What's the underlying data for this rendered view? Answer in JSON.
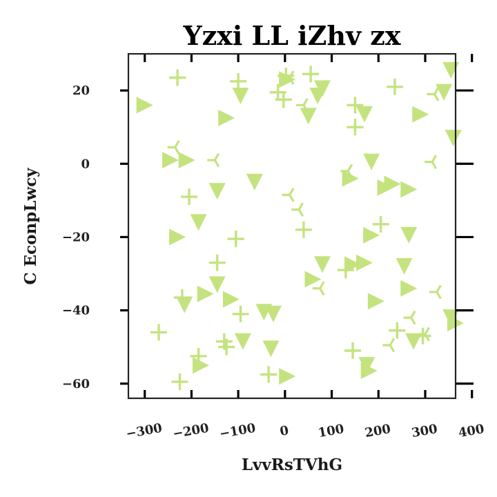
{
  "chart_data": {
    "type": "scatter",
    "title": "Yzxi LL iZhv zx",
    "xlabel": "LvvRsTVhG",
    "ylabel": "C EconpLwcy",
    "xlim": [
      -335,
      365
    ],
    "ylim": [
      -64,
      30
    ],
    "xticks": [
      -300,
      -200,
      -100,
      0,
      100,
      200,
      300,
      400
    ],
    "xtick_labels": [
      "−300",
      "−200",
      "−100",
      "0",
      "100",
      "200",
      "300",
      "400"
    ],
    "yticks": [
      20,
      0,
      -20,
      -40,
      -60
    ],
    "ytick_labels": [
      "20",
      "0",
      "−20",
      "−40",
      "−60"
    ],
    "grid": false,
    "legend": "none",
    "marker_color": "#c4e37f",
    "series": [
      {
        "marker": "plus",
        "points": [
          {
            "x": -230,
            "y": 23.5
          },
          {
            "x": -100,
            "y": 22.5
          },
          {
            "x": -15,
            "y": 19.5
          },
          {
            "x": -3,
            "y": 17.5
          },
          {
            "x": 2,
            "y": 24
          },
          {
            "x": 55,
            "y": 24.5
          },
          {
            "x": 150,
            "y": 16
          },
          {
            "x": 150,
            "y": 10
          },
          {
            "x": 235,
            "y": 21
          },
          {
            "x": -205,
            "y": -9
          },
          {
            "x": 40,
            "y": -18
          },
          {
            "x": -105,
            "y": -20.5
          },
          {
            "x": 205,
            "y": -16.5
          },
          {
            "x": -145,
            "y": -27
          },
          {
            "x": 130,
            "y": -29
          },
          {
            "x": -220,
            "y": -36.5
          },
          {
            "x": -95,
            "y": -41
          },
          {
            "x": -270,
            "y": -46
          },
          {
            "x": -130,
            "y": -48.5
          },
          {
            "x": -125,
            "y": -50
          },
          {
            "x": -185,
            "y": -52.5
          },
          {
            "x": 145,
            "y": -51
          },
          {
            "x": 240,
            "y": -45.5
          },
          {
            "x": 295,
            "y": -47
          },
          {
            "x": -225,
            "y": -59.5
          },
          {
            "x": -35,
            "y": -57.5
          }
        ]
      },
      {
        "marker": "tri_down",
        "points": [
          {
            "x": -95,
            "y": 18.5
          },
          {
            "x": 80,
            "y": 20.5
          },
          {
            "x": 70,
            "y": 18.5
          },
          {
            "x": 50,
            "y": 13
          },
          {
            "x": 170,
            "y": 13.5
          },
          {
            "x": 355,
            "y": 25.5
          },
          {
            "x": 340,
            "y": 19.5
          },
          {
            "x": 360,
            "y": 7
          },
          {
            "x": 185,
            "y": 0.5
          },
          {
            "x": -65,
            "y": -5
          },
          {
            "x": -145,
            "y": -7.5
          },
          {
            "x": -185,
            "y": -16
          },
          {
            "x": 265,
            "y": -19.5
          },
          {
            "x": 80,
            "y": -27.5
          },
          {
            "x": 255,
            "y": -28
          },
          {
            "x": -145,
            "y": -33
          },
          {
            "x": -215,
            "y": -38.5
          },
          {
            "x": -45,
            "y": -40.5
          },
          {
            "x": -25,
            "y": -41
          },
          {
            "x": -90,
            "y": -48.5
          },
          {
            "x": -30,
            "y": -50.5
          },
          {
            "x": 175,
            "y": -55
          },
          {
            "x": 275,
            "y": -48.5
          },
          {
            "x": 355,
            "y": -42
          }
        ]
      },
      {
        "marker": "tri_right",
        "points": [
          {
            "x": -300,
            "y": 16
          },
          {
            "x": 5,
            "y": 23
          },
          {
            "x": -125,
            "y": 12.5
          },
          {
            "x": 290,
            "y": 13.5
          },
          {
            "x": -245,
            "y": 1
          },
          {
            "x": -210,
            "y": 1
          },
          {
            "x": 140,
            "y": -4
          },
          {
            "x": 230,
            "y": -5.5
          },
          {
            "x": 215,
            "y": -6.5
          },
          {
            "x": 265,
            "y": -7
          },
          {
            "x": -230,
            "y": -20
          },
          {
            "x": 185,
            "y": -19.5
          },
          {
            "x": 145,
            "y": -27.5
          },
          {
            "x": 170,
            "y": -27
          },
          {
            "x": 60,
            "y": -31.5
          },
          {
            "x": -170,
            "y": -35.5
          },
          {
            "x": -115,
            "y": -37
          },
          {
            "x": 195,
            "y": -37.5
          },
          {
            "x": 265,
            "y": -34
          },
          {
            "x": 365,
            "y": -43.5
          },
          {
            "x": -180,
            "y": -55
          },
          {
            "x": 5,
            "y": -58
          },
          {
            "x": 180,
            "y": -56.5
          }
        ]
      },
      {
        "marker": "tri_left",
        "points": [
          {
            "x": 10,
            "y": 23.5
          },
          {
            "x": 40,
            "y": 16
          },
          {
            "x": 320,
            "y": 19
          },
          {
            "x": -235,
            "y": 4.5
          },
          {
            "x": -150,
            "y": 1
          },
          {
            "x": 315,
            "y": 0.5
          },
          {
            "x": 135,
            "y": -2
          },
          {
            "x": 10,
            "y": -8.5
          },
          {
            "x": 30,
            "y": -12.5
          },
          {
            "x": 75,
            "y": -34
          },
          {
            "x": 325,
            "y": -35
          },
          {
            "x": 270,
            "y": -42
          },
          {
            "x": 225,
            "y": -49.5
          },
          {
            "x": 300,
            "y": -46.5
          }
        ]
      }
    ]
  }
}
